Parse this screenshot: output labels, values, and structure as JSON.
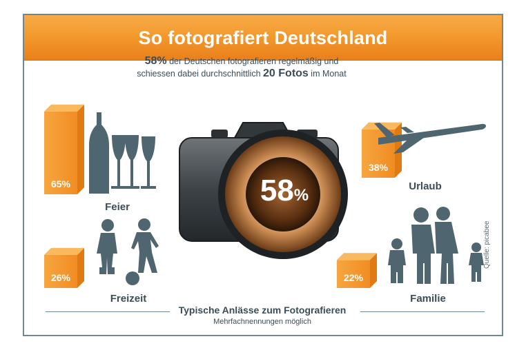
{
  "title": "So fotografiert Deutschland",
  "headline": {
    "pct": "58",
    "pct_unit": "%",
    "text1": " der Deutschen fotografieren regelmäßig und",
    "text2": "schiessen dabei durchschnittlich ",
    "count": "20 Fotos",
    "text3": " im Monat"
  },
  "center": {
    "value": "58",
    "unit": "%"
  },
  "footer": {
    "title": "Typische Anlässe zum Fotografieren",
    "subtitle": "Mehrfachnennungen möglich"
  },
  "source": "Quelle: picabee",
  "colors": {
    "orange": "#f39a2e",
    "orange_dark": "#e07a12",
    "slate": "#3b4c56",
    "silhouette": "#4f6570"
  },
  "icons": [
    "champagne-icon",
    "airplane-icon",
    "children-icon",
    "family-icon",
    "camera-icon"
  ],
  "chart_data": {
    "type": "bar",
    "title": "So fotografiert Deutschland",
    "categories": [
      "Feier",
      "Urlaub",
      "Freizeit",
      "Familie"
    ],
    "values": [
      65,
      38,
      26,
      22
    ],
    "value_labels": [
      "65%",
      "38%",
      "26%",
      "22%"
    ],
    "ylim": [
      0,
      100
    ],
    "grid": false,
    "legend": "none"
  }
}
